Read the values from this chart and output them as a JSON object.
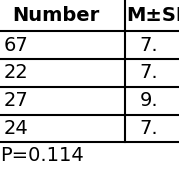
{
  "col_labels": [
    "Number",
    "M±SD"
  ],
  "row_col1": [
    "67",
    "22",
    "27",
    "24"
  ],
  "row_col2": [
    "7.",
    "7.",
    "9.",
    "7."
  ],
  "p_value": "P=0.114",
  "background": "#ffffff",
  "line_color": "#000000",
  "font_size": 14,
  "header_font_size": 14
}
